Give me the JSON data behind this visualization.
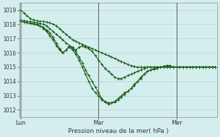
{
  "title": "",
  "xlabel": "Pression niveau de la mer( hPa )",
  "ylabel": "",
  "background_color": "#d4eeed",
  "grid_color": "#aed4d0",
  "line_color": "#1a5c1a",
  "ylim": [
    1011.5,
    1019.5
  ],
  "day_labels": [
    "Lun",
    "Mar",
    "Mer"
  ],
  "day_positions": [
    0,
    24,
    48
  ],
  "total_points": 61,
  "series": [
    [
      1019.0,
      1018.8,
      1018.6,
      1018.4,
      1018.3,
      1018.25,
      1018.2,
      1018.2,
      1018.15,
      1018.1,
      1018.0,
      1017.9,
      1017.7,
      1017.5,
      1017.3,
      1017.1,
      1016.9,
      1016.8,
      1016.7,
      1016.6,
      1016.5,
      1016.4,
      1016.3,
      1016.2,
      1016.1,
      1016.0,
      1015.9,
      1015.8,
      1015.7,
      1015.6,
      1015.5,
      1015.4,
      1015.3,
      1015.2,
      1015.1,
      1015.05,
      1015.0,
      1015.0,
      1015.0,
      1015.0,
      1015.0,
      1015.0,
      1015.0,
      1015.0,
      1015.0,
      1015.0,
      1015.0,
      1015.0,
      1015.0,
      1015.0,
      1015.0,
      1015.0,
      1015.0,
      1015.0,
      1015.0,
      1015.0,
      1015.0,
      1015.0,
      1015.0,
      1015.0,
      1015.0
    ],
    [
      1018.3,
      1018.25,
      1018.2,
      1018.2,
      1018.15,
      1018.1,
      1018.05,
      1018.0,
      1017.9,
      1017.7,
      1017.5,
      1017.3,
      1017.1,
      1016.9,
      1016.7,
      1016.5,
      1016.3,
      1016.2,
      1016.4,
      1016.5,
      1016.4,
      1016.3,
      1016.1,
      1015.8,
      1015.5,
      1015.2,
      1014.9,
      1014.7,
      1014.5,
      1014.3,
      1014.2,
      1014.2,
      1014.3,
      1014.4,
      1014.5,
      1014.6,
      1014.7,
      1014.8,
      1014.9,
      1015.0,
      1015.0,
      1015.0,
      1015.0,
      1015.0,
      1015.0,
      1015.0,
      1015.0,
      1015.0,
      1015.0,
      1015.0,
      1015.0,
      1015.0,
      1015.0,
      1015.0,
      1015.0,
      1015.0,
      1015.0,
      1015.0,
      1015.0,
      1015.0,
      1015.0
    ],
    [
      1018.2,
      1018.15,
      1018.1,
      1018.1,
      1018.05,
      1018.0,
      1017.9,
      1017.8,
      1017.6,
      1017.4,
      1017.1,
      1016.7,
      1016.3,
      1016.0,
      1016.2,
      1016.5,
      1016.4,
      1016.1,
      1015.7,
      1015.3,
      1014.8,
      1014.4,
      1014.0,
      1013.6,
      1013.2,
      1012.8,
      1012.55,
      1012.4,
      1012.5,
      1012.6,
      1012.8,
      1013.0,
      1013.2,
      1013.3,
      1013.5,
      1013.7,
      1014.0,
      1014.2,
      1014.5,
      1014.7,
      1014.8,
      1014.9,
      1015.0,
      1015.0,
      1015.05,
      1015.1,
      1015.1,
      1015.0,
      1015.0,
      1015.0,
      1015.0,
      1015.0,
      1015.0,
      1015.0,
      1015.0,
      1015.0,
      1015.0,
      1015.0,
      1015.0,
      1015.0,
      1015.0
    ],
    [
      1018.2,
      1018.15,
      1018.1,
      1018.05,
      1018.0,
      1017.95,
      1017.9,
      1017.7,
      1017.5,
      1017.2,
      1016.9,
      1016.5,
      1016.2,
      1016.0,
      1016.2,
      1016.4,
      1016.2,
      1015.9,
      1015.5,
      1015.0,
      1014.5,
      1014.0,
      1013.5,
      1013.2,
      1013.0,
      1012.7,
      1012.6,
      1012.5,
      1012.5,
      1012.55,
      1012.7,
      1012.9,
      1013.1,
      1013.3,
      1013.5,
      1013.8,
      1014.0,
      1014.3,
      1014.5,
      1014.7,
      1014.8,
      1014.85,
      1014.9,
      1015.0,
      1015.05,
      1015.1,
      1015.1,
      1015.0,
      1015.0,
      1015.0,
      1015.0,
      1015.0,
      1015.0,
      1015.0,
      1015.0,
      1015.0,
      1015.0,
      1015.0,
      1015.0,
      1015.0,
      1015.0
    ]
  ],
  "yticks": [
    1012,
    1013,
    1014,
    1015,
    1016,
    1017,
    1018,
    1019
  ]
}
